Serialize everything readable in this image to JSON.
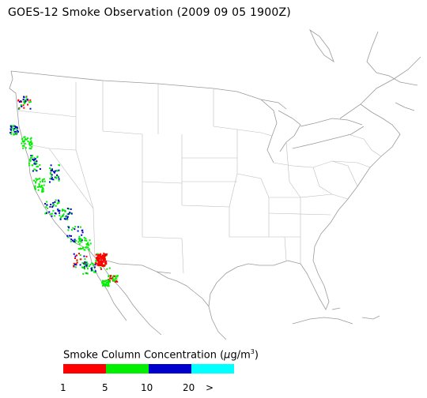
{
  "title": "GOES-12 Smoke Observation (2009 09 05  1900Z)",
  "legend": {
    "title_prefix": "Smoke Column Concentration (",
    "unit_mu": "μ",
    "unit_rest": "g/m",
    "unit_sup": "3",
    "title_suffix": ")",
    "colors": [
      "#ff0000",
      "#00ee00",
      "#0000cc",
      "#00ffff"
    ],
    "ticks": [
      "1",
      "5",
      "10",
      "20",
      ">"
    ]
  }
}
